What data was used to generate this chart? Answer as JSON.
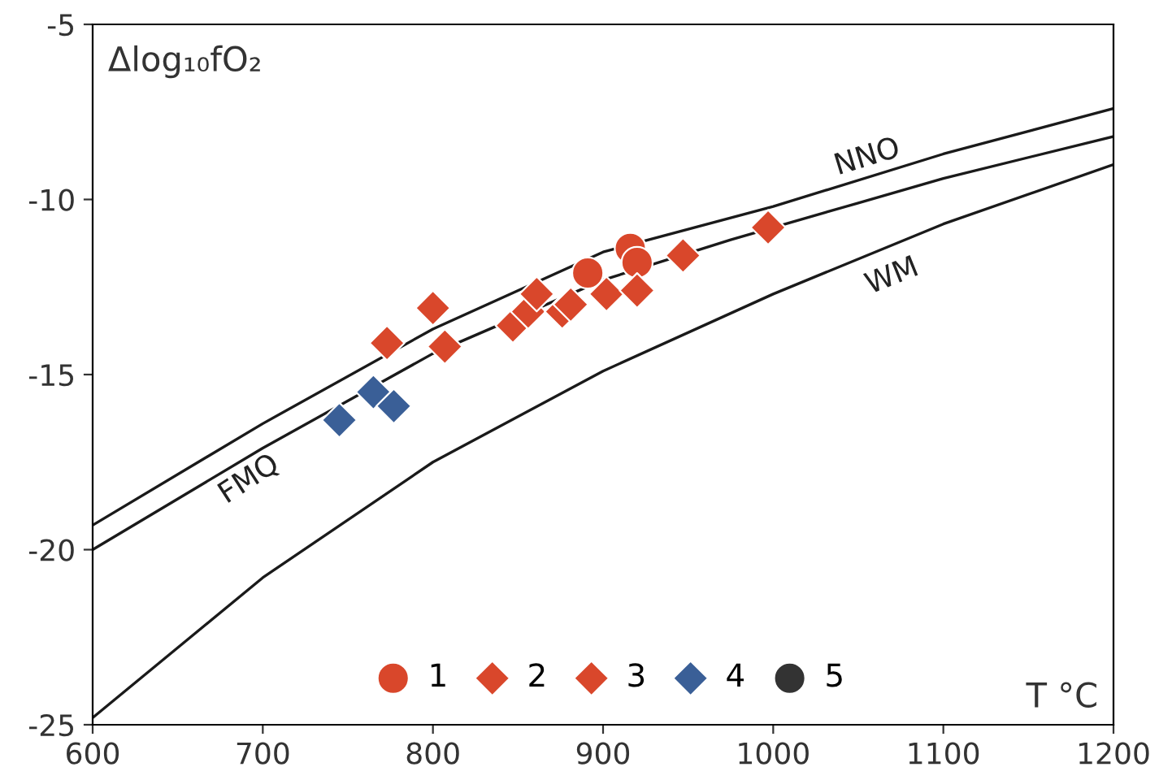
{
  "chart_data": {
    "type": "scatter",
    "xlabel": "T °C",
    "ylabel": "Δlog₁₀fO₂",
    "xlim": [
      600,
      1200
    ],
    "ylim": [
      -25,
      -5
    ],
    "xticks": [
      600,
      700,
      800,
      900,
      1000,
      1100,
      1200
    ],
    "yticks": [
      -25,
      -20,
      -15,
      -10,
      -5
    ],
    "grid": false,
    "legend": "bottom",
    "series": [
      {
        "type": "line",
        "color": "#1a1a1a",
        "marker": "none",
        "x": [
          600,
          700,
          800,
          900,
          1000,
          1100,
          1200
        ],
        "values": [
          -19.3,
          -16.4,
          -13.7,
          -11.5,
          -10.2,
          -8.7,
          -7.4
        ]
      },
      {
        "type": "line",
        "color": "#1a1a1a",
        "marker": "none",
        "x": [
          600,
          700,
          800,
          900,
          975,
          1050,
          1100,
          1200
        ],
        "values": [
          -20.0,
          -17.1,
          -14.4,
          -12.3,
          -11.15,
          -10.1,
          -9.4,
          -8.2
        ]
      },
      {
        "type": "line",
        "color": "#1a1a1a",
        "marker": "none",
        "x": [
          600,
          700,
          800,
          900,
          1000,
          1100,
          1200
        ],
        "values": [
          -24.8,
          -20.8,
          -17.5,
          -14.9,
          -12.7,
          -10.7,
          -9.0
        ]
      },
      {
        "name": "1",
        "marker": "circle",
        "color": "#d9472b",
        "x": [
          891,
          916,
          920
        ],
        "values": [
          -12.1,
          -11.4,
          -11.8
        ]
      },
      {
        "name": "2",
        "marker": "diamond",
        "color": "#d9472b",
        "x": [
          807,
          847,
          856,
          861,
          876,
          881,
          902,
          920,
          947,
          997
        ],
        "values": [
          -14.2,
          -13.6,
          -13.2,
          -12.7,
          -13.2,
          -13.0,
          -12.7,
          -12.6,
          -11.6,
          -10.8
        ]
      },
      {
        "name": "3",
        "marker": "diamond",
        "color": "#d9472b",
        "x": [
          773,
          800
        ],
        "values": [
          -14.1,
          -13.1
        ]
      },
      {
        "name": "4",
        "marker": "diamond",
        "color": "#3a5f97",
        "x": [
          745,
          765,
          777
        ],
        "values": [
          -16.3,
          -15.5,
          -15.9
        ]
      },
      {
        "name": "5",
        "marker": "circle",
        "color": "#333333"
      }
    ],
    "annotations": [
      {
        "text": "NNO",
        "x": 1050,
        "y": -9.45
      },
      {
        "text": "FMQ",
        "x": 700,
        "y": -17.1
      },
      {
        "text": "WM",
        "x": 1070,
        "y": -11.3
      }
    ]
  }
}
